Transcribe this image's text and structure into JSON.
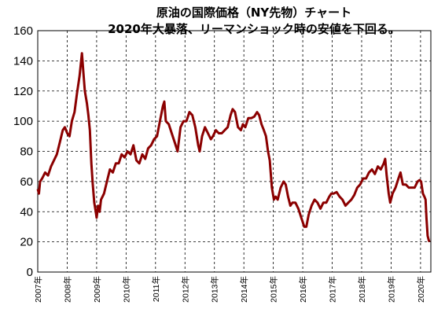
{
  "title": "原油の国際価格（NY先物）チャート",
  "subtitle": "2020年大暴落、リーマンショック時の安値を下回る。",
  "chart_data": {
    "type": "line",
    "title": "原油の国際価格（NY先物）チャート",
    "subtitle": "2020年大暴落、リーマンショック時の安値を下回る。",
    "xlabel": "",
    "ylabel": "",
    "ylim": [
      0,
      160
    ],
    "yticks": [
      0,
      20,
      40,
      60,
      80,
      100,
      120,
      140,
      160
    ],
    "xlim": [
      2007.0,
      2020.35
    ],
    "xticks": [
      "2007年",
      "2008年",
      "2009年",
      "2010年",
      "2011年",
      "2012年",
      "2013年",
      "2014年",
      "2015年",
      "2016年",
      "2017年",
      "2018年",
      "2019年",
      "2020年"
    ],
    "grid": true,
    "line_color": "#8b0000",
    "series": [
      {
        "points": [
          [
            2007.0,
            55
          ],
          [
            2007.04,
            52
          ],
          [
            2007.08,
            60
          ],
          [
            2007.15,
            62
          ],
          [
            2007.25,
            66
          ],
          [
            2007.35,
            64
          ],
          [
            2007.45,
            70
          ],
          [
            2007.55,
            74
          ],
          [
            2007.65,
            78
          ],
          [
            2007.75,
            86
          ],
          [
            2007.85,
            94
          ],
          [
            2007.92,
            96
          ],
          [
            2008.0,
            92
          ],
          [
            2008.08,
            90
          ],
          [
            2008.16,
            100
          ],
          [
            2008.25,
            106
          ],
          [
            2008.33,
            118
          ],
          [
            2008.42,
            130
          ],
          [
            2008.5,
            145
          ],
          [
            2008.55,
            132
          ],
          [
            2008.6,
            120
          ],
          [
            2008.67,
            112
          ],
          [
            2008.72,
            104
          ],
          [
            2008.77,
            94
          ],
          [
            2008.82,
            72
          ],
          [
            2008.87,
            58
          ],
          [
            2008.92,
            46
          ],
          [
            2008.97,
            40
          ],
          [
            2009.0,
            36
          ],
          [
            2009.05,
            44
          ],
          [
            2009.1,
            40
          ],
          [
            2009.15,
            48
          ],
          [
            2009.25,
            52
          ],
          [
            2009.35,
            60
          ],
          [
            2009.45,
            68
          ],
          [
            2009.55,
            66
          ],
          [
            2009.65,
            72
          ],
          [
            2009.75,
            72
          ],
          [
            2009.85,
            78
          ],
          [
            2009.95,
            76
          ],
          [
            2010.05,
            80
          ],
          [
            2010.15,
            78
          ],
          [
            2010.25,
            84
          ],
          [
            2010.35,
            74
          ],
          [
            2010.45,
            72
          ],
          [
            2010.55,
            78
          ],
          [
            2010.65,
            75
          ],
          [
            2010.75,
            82
          ],
          [
            2010.85,
            84
          ],
          [
            2010.95,
            88
          ],
          [
            2011.05,
            90
          ],
          [
            2011.15,
            100
          ],
          [
            2011.25,
            110
          ],
          [
            2011.3,
            113
          ],
          [
            2011.35,
            100
          ],
          [
            2011.45,
            98
          ],
          [
            2011.55,
            92
          ],
          [
            2011.65,
            86
          ],
          [
            2011.75,
            80
          ],
          [
            2011.85,
            96
          ],
          [
            2011.95,
            100
          ],
          [
            2012.05,
            100
          ],
          [
            2012.15,
            106
          ],
          [
            2012.25,
            104
          ],
          [
            2012.35,
            96
          ],
          [
            2012.45,
            84
          ],
          [
            2012.5,
            80
          ],
          [
            2012.58,
            90
          ],
          [
            2012.68,
            96
          ],
          [
            2012.78,
            92
          ],
          [
            2012.88,
            88
          ],
          [
            2012.95,
            90
          ],
          [
            2013.05,
            94
          ],
          [
            2013.15,
            92
          ],
          [
            2013.25,
            92
          ],
          [
            2013.35,
            94
          ],
          [
            2013.45,
            96
          ],
          [
            2013.55,
            104
          ],
          [
            2013.62,
            108
          ],
          [
            2013.7,
            106
          ],
          [
            2013.8,
            96
          ],
          [
            2013.9,
            94
          ],
          [
            2013.97,
            98
          ],
          [
            2014.05,
            96
          ],
          [
            2014.15,
            102
          ],
          [
            2014.25,
            102
          ],
          [
            2014.35,
            103
          ],
          [
            2014.45,
            106
          ],
          [
            2014.52,
            104
          ],
          [
            2014.6,
            98
          ],
          [
            2014.68,
            94
          ],
          [
            2014.75,
            90
          ],
          [
            2014.82,
            80
          ],
          [
            2014.88,
            74
          ],
          [
            2014.95,
            56
          ],
          [
            2015.02,
            48
          ],
          [
            2015.08,
            50
          ],
          [
            2015.15,
            48
          ],
          [
            2015.25,
            56
          ],
          [
            2015.35,
            60
          ],
          [
            2015.42,
            58
          ],
          [
            2015.5,
            50
          ],
          [
            2015.58,
            44
          ],
          [
            2015.65,
            46
          ],
          [
            2015.75,
            46
          ],
          [
            2015.85,
            42
          ],
          [
            2015.95,
            36
          ],
          [
            2016.05,
            30
          ],
          [
            2016.12,
            30
          ],
          [
            2016.2,
            38
          ],
          [
            2016.3,
            44
          ],
          [
            2016.4,
            48
          ],
          [
            2016.5,
            46
          ],
          [
            2016.6,
            42
          ],
          [
            2016.7,
            46
          ],
          [
            2016.8,
            46
          ],
          [
            2016.9,
            50
          ],
          [
            2016.97,
            52
          ],
          [
            2017.05,
            52
          ],
          [
            2017.15,
            53
          ],
          [
            2017.25,
            50
          ],
          [
            2017.35,
            48
          ],
          [
            2017.45,
            44
          ],
          [
            2017.55,
            46
          ],
          [
            2017.65,
            48
          ],
          [
            2017.75,
            51
          ],
          [
            2017.85,
            56
          ],
          [
            2017.95,
            58
          ],
          [
            2018.05,
            62
          ],
          [
            2018.15,
            62
          ],
          [
            2018.25,
            66
          ],
          [
            2018.35,
            68
          ],
          [
            2018.45,
            65
          ],
          [
            2018.55,
            70
          ],
          [
            2018.65,
            68
          ],
          [
            2018.75,
            72
          ],
          [
            2018.8,
            75
          ],
          [
            2018.85,
            64
          ],
          [
            2018.92,
            52
          ],
          [
            2018.97,
            46
          ],
          [
            2019.05,
            52
          ],
          [
            2019.15,
            56
          ],
          [
            2019.25,
            62
          ],
          [
            2019.32,
            66
          ],
          [
            2019.4,
            58
          ],
          [
            2019.5,
            58
          ],
          [
            2019.6,
            56
          ],
          [
            2019.7,
            56
          ],
          [
            2019.8,
            56
          ],
          [
            2019.9,
            60
          ],
          [
            2019.97,
            61
          ],
          [
            2020.02,
            60
          ],
          [
            2020.08,
            52
          ],
          [
            2020.13,
            50
          ],
          [
            2020.17,
            48
          ],
          [
            2020.2,
            36
          ],
          [
            2020.24,
            24
          ],
          [
            2020.28,
            21
          ],
          [
            2020.3,
            20
          ]
        ]
      }
    ]
  }
}
